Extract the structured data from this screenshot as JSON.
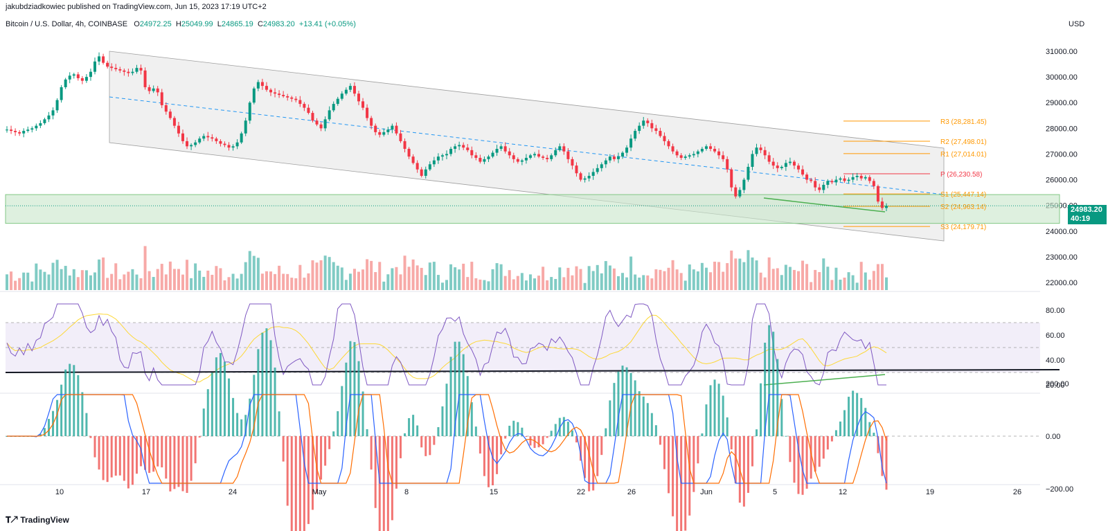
{
  "credit": "jakubdziadkowiec published on TradingView.com, Jun 15, 2023 17:19 UTC+2",
  "header": {
    "symbol": "Bitcoin / U.S. Dollar, 4h, COINBASE",
    "o_label": "O",
    "o_value": "24972.25",
    "h_label": "H",
    "h_value": "25049.99",
    "l_label": "L",
    "l_value": "24865.19",
    "c_label": "C",
    "c_value": "24983.20",
    "change": "+13.41 (+0.05%)"
  },
  "currency": "USD",
  "last_price": {
    "price": "24983.20",
    "countdown": "40:19"
  },
  "footer": {
    "brand": "TradingView",
    "logo_icon": "tradingview-logo-icon"
  },
  "colors": {
    "up": "#089981",
    "down": "#f23645",
    "rsi": "#7e57c2",
    "rsi_ma": "#fdd835",
    "macd": "#2962ff",
    "signal": "#ff6d00",
    "pivot_support": "#ff9800",
    "pivot_resistance": "#ff9800",
    "pivot_p": "#f23645"
  },
  "chart_data": [
    {
      "type": "candlestick",
      "title": "Bitcoin / U.S. Dollar, 4h, COINBASE",
      "y_ticks": [
        "31000.00",
        "30000.00",
        "29000.00",
        "28000.00",
        "27000.00",
        "26000.00",
        "25000.00",
        "24000.00",
        "23000.00",
        "22000.00"
      ],
      "ylim": [
        21800,
        31800
      ],
      "x_ticks": [
        "10",
        "17",
        "24",
        "May",
        "8",
        "15",
        "22",
        "26",
        "Jun",
        "5",
        "12",
        "19",
        "26"
      ],
      "close_series": [
        27950,
        27900,
        27850,
        27800,
        27900,
        27950,
        28000,
        28100,
        28200,
        28350,
        28500,
        28700,
        29100,
        29600,
        29900,
        30050,
        30100,
        29950,
        29850,
        30000,
        30200,
        30600,
        30800,
        30550,
        30400,
        30350,
        30300,
        30250,
        30200,
        30150,
        30200,
        30350,
        30250,
        29600,
        29450,
        29550,
        29400,
        28900,
        28650,
        28400,
        28100,
        27800,
        27500,
        27300,
        27350,
        27450,
        27600,
        27700,
        27650,
        27600,
        27500,
        27400,
        27350,
        27250,
        27300,
        27450,
        27800,
        28300,
        29000,
        29550,
        29800,
        29650,
        29500,
        29400,
        29350,
        29300,
        29250,
        29200,
        29150,
        29100,
        28950,
        28800,
        28600,
        28300,
        28150,
        28000,
        28350,
        28700,
        28950,
        29150,
        29350,
        29500,
        29650,
        29350,
        29050,
        28800,
        28400,
        28100,
        27850,
        27750,
        27850,
        27950,
        28100,
        27800,
        27500,
        27200,
        26900,
        26650,
        26400,
        26150,
        26400,
        26600,
        26750,
        26900,
        26950,
        27000,
        27200,
        27300,
        27350,
        27250,
        27150,
        26950,
        26850,
        26700,
        26800,
        26900,
        27050,
        27200,
        27300,
        27100,
        26950,
        26800,
        26700,
        26750,
        26850,
        26950,
        27000,
        26900,
        26850,
        26800,
        26950,
        27150,
        27300,
        27100,
        26800,
        26550,
        26250,
        26000,
        26050,
        26150,
        26300,
        26450,
        26600,
        26750,
        26900,
        26800,
        26900,
        27050,
        27250,
        27600,
        27900,
        28100,
        28300,
        28200,
        28000,
        27900,
        27700,
        27500,
        27300,
        27100,
        26950,
        26850,
        26900,
        26950,
        27000,
        27100,
        27200,
        27300,
        27200,
        27100,
        26950,
        26800,
        26400,
        25700,
        25350,
        25600,
        26000,
        26500,
        27000,
        27250,
        27150,
        26950,
        26700,
        26550,
        26450,
        26500,
        26650,
        26700,
        26550,
        26400,
        26200,
        26000,
        25950,
        25700,
        25600,
        25800,
        25950,
        25900,
        26000,
        26050,
        25950,
        26000,
        26100,
        26150,
        26050,
        26100,
        25950,
        25750,
        25150,
        24900,
        24983
      ]
    },
    {
      "type": "bar",
      "title": "Volume"
    },
    {
      "type": "line",
      "title": "RSI",
      "y_ticks": [
        "80.00",
        "60.00",
        "40.00",
        "20.00"
      ],
      "ylim": [
        15,
        90
      ],
      "bands": [
        30,
        50,
        70
      ]
    },
    {
      "type": "line",
      "title": "MACD",
      "y_ticks": [
        "200.00",
        "0.00",
        "−200.00"
      ],
      "ylim": [
        -300,
        250
      ]
    }
  ],
  "pivots": [
    {
      "label": "R3 (28,281.45)",
      "value": 28281.45
    },
    {
      "label": "R2 (27,498.01)",
      "value": 27498.01
    },
    {
      "label": "R1 (27,014.01)",
      "value": 27014.01
    },
    {
      "label": "P (26,230.58)",
      "value": 26230.58
    },
    {
      "label": "S1 (25,447.14)",
      "value": 25447.14
    },
    {
      "label": "S2 (24,963.14)",
      "value": 24963.14
    },
    {
      "label": "S3 (24,179.71)",
      "value": 24179.71
    }
  ],
  "support_zone": {
    "top": 25420,
    "bottom": 24300
  }
}
